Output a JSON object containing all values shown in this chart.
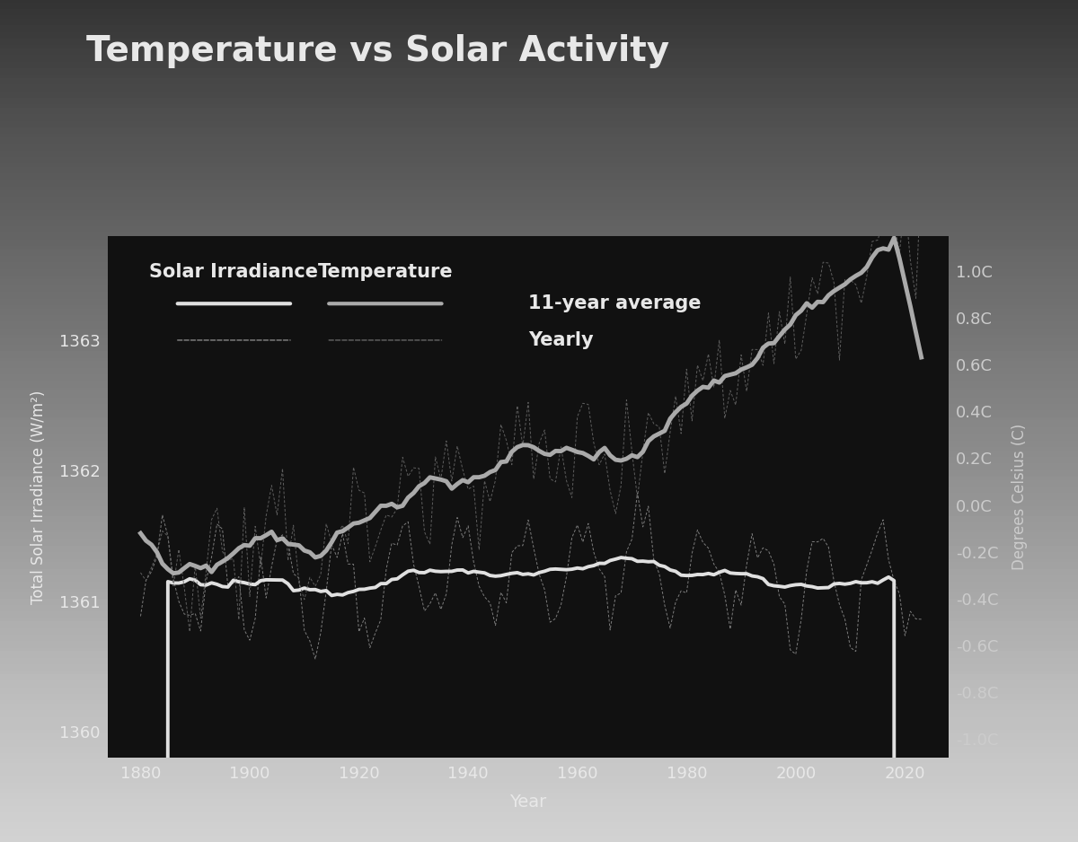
{
  "title": "Temperature vs Solar Activity",
  "xlabel": "Year",
  "ylabel_left": "Total Solar Irradiance (W/m²)",
  "ylabel_right": "Degrees Celsius (C)",
  "bg_color_top": "#111111",
  "bg_color_bottom": "#2a2a2a",
  "text_color": "#e8e8e8",
  "tick_color": "#cccccc",
  "solar_avg_color": "#e0e0e0",
  "solar_yearly_color": "#888888",
  "temp_avg_color": "#aaaaaa",
  "temp_yearly_color": "#666666",
  "xlim": [
    1874,
    2028
  ],
  "ylim_left": [
    1359.8,
    1363.8
  ],
  "ylim_right": [
    -1.08,
    1.15
  ],
  "yticks_left": [
    1360,
    1361,
    1362,
    1363
  ],
  "yticks_right": [
    -1.0,
    -0.8,
    -0.6,
    -0.4,
    -0.2,
    0.0,
    0.2,
    0.4,
    0.6,
    0.8,
    1.0
  ],
  "xticks": [
    1880,
    1900,
    1920,
    1940,
    1960,
    1980,
    2000,
    2020
  ],
  "title_fontsize": 28,
  "axis_label_fontsize": 12,
  "tick_fontsize": 13,
  "legend_fontsize": 15
}
